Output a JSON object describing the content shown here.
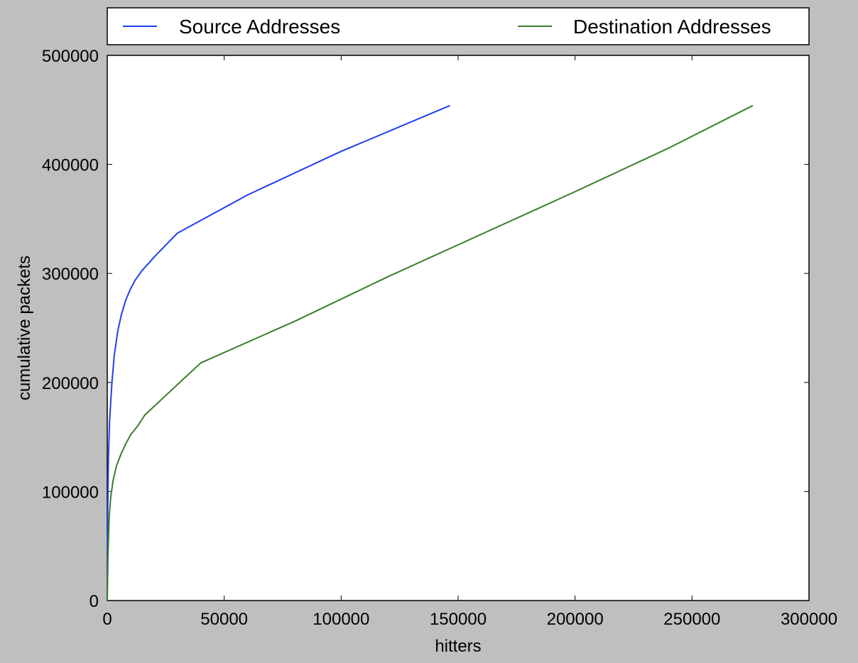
{
  "chart_data": {
    "type": "line",
    "title": "",
    "xlabel": "hitters",
    "ylabel": "cumulative packets",
    "xlim": [
      0,
      300000
    ],
    "ylim": [
      0,
      500000
    ],
    "xticks": [
      0,
      50000,
      100000,
      150000,
      200000,
      250000,
      300000
    ],
    "yticks": [
      0,
      100000,
      200000,
      300000,
      400000,
      500000
    ],
    "xtick_labels": [
      "0",
      "50000",
      "100000",
      "150000",
      "200000",
      "250000",
      "300000"
    ],
    "ytick_labels": [
      "0",
      "100000",
      "200000",
      "300000",
      "400000",
      "500000"
    ],
    "grid": false,
    "legend": {
      "placement": "top",
      "columns": 2
    },
    "series": [
      {
        "name": "Source Addresses",
        "color": "#1f3ff0",
        "x": [
          0,
          200,
          500,
          1000,
          2000,
          3000,
          4500,
          6000,
          8000,
          10000,
          12000,
          15000,
          18000,
          20000,
          25000,
          30000,
          60000,
          100000,
          146500
        ],
        "y": [
          0,
          80000,
          130000,
          165000,
          200000,
          225000,
          247000,
          262000,
          276000,
          286000,
          294000,
          303000,
          310000,
          315000,
          326000,
          337000,
          372000,
          412000,
          454000
        ]
      },
      {
        "name": "Destination Addresses",
        "color": "#3a7d2a",
        "x": [
          0,
          300,
          800,
          1500,
          2500,
          4000,
          6000,
          8000,
          10000,
          13000,
          16000,
          25000,
          40000,
          80000,
          120000,
          160000,
          200000,
          240000,
          276000
        ],
        "y": [
          0,
          40000,
          75000,
          95000,
          110000,
          124000,
          135000,
          144000,
          152000,
          160000,
          170000,
          188000,
          218000,
          256000,
          297000,
          336000,
          375000,
          415000,
          454000
        ]
      }
    ]
  }
}
